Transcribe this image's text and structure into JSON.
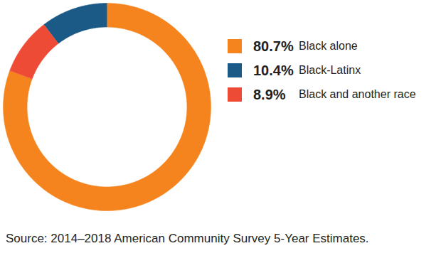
{
  "chart_data": {
    "type": "pie",
    "categories": [
      "Black alone",
      "Black-Latinx",
      "Black and another race"
    ],
    "values": [
      80.7,
      10.4,
      8.9
    ],
    "value_labels": [
      "80.7%",
      "10.4%",
      "8.9%"
    ],
    "colors": [
      "#f5841f",
      "#1b5a87",
      "#ee4b36"
    ],
    "legend": "right",
    "caption": "Source: 2014–2018 American Community Survey 5-Year Estimates."
  }
}
